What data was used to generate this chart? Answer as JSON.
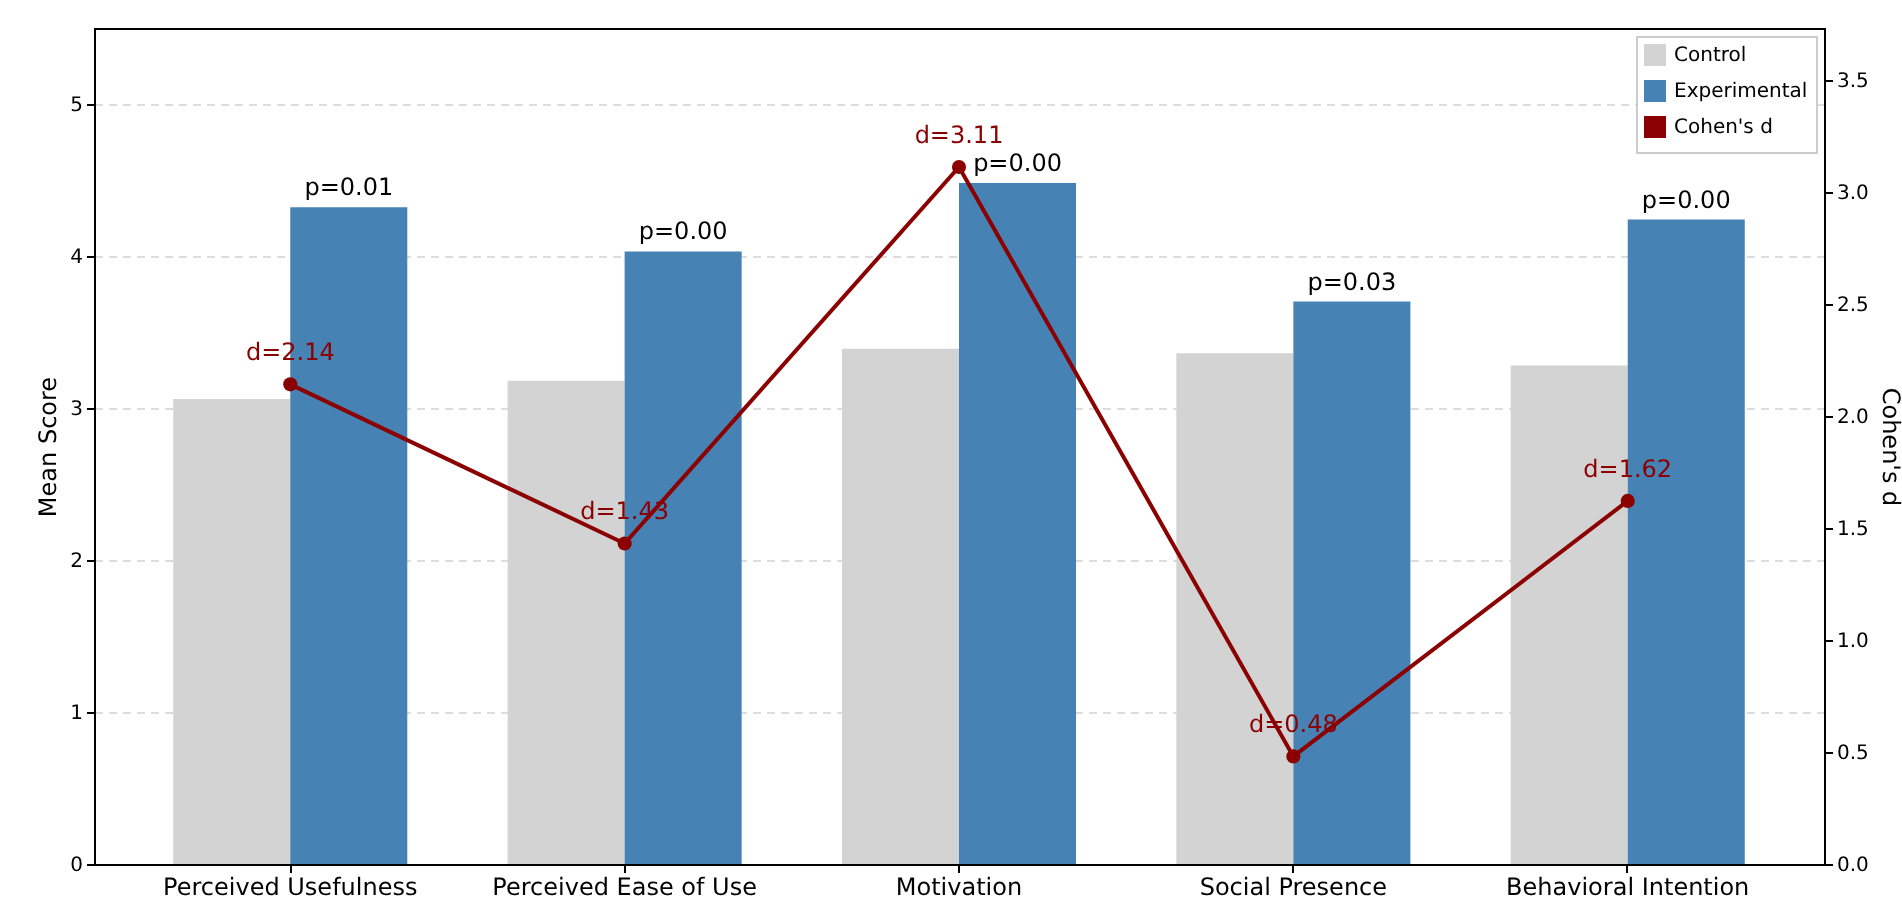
{
  "chart_data": {
    "type": "bar",
    "categories": [
      "Perceived Usefulness",
      "Perceived Ease of Use",
      "Motivation",
      "Social Presence",
      "Behavioral Intention"
    ],
    "ylabel": "Mean Score",
    "y2label": "Cohen's d",
    "ylim": [
      0,
      5.5
    ],
    "yticks": [
      0,
      1,
      2,
      3,
      4,
      5
    ],
    "y2lim": [
      0,
      3.73
    ],
    "y2ticks": [
      {
        "value": 0,
        "label": "0.0"
      },
      {
        "value": 0.5,
        "label": "0.5"
      },
      {
        "value": 1,
        "label": "1.0"
      },
      {
        "value": 1.5,
        "label": "1.5"
      },
      {
        "value": 2,
        "label": "2.0"
      },
      {
        "value": 2.5,
        "label": "2.5"
      },
      {
        "value": 3,
        "label": "3.0"
      },
      {
        "value": 3.5,
        "label": "3.5"
      }
    ],
    "grid": "y",
    "legend": "top right",
    "series": [
      {
        "name": "Control",
        "color": "#d3d3d3",
        "values": [
          3.06,
          3.18,
          3.39,
          3.36,
          3.28
        ]
      },
      {
        "name": "Experimental",
        "color": "#4682b4",
        "values": [
          4.32,
          4.03,
          4.48,
          3.7,
          4.24
        ]
      },
      {
        "name": "Cohen's d",
        "type": "line",
        "axis": "y2",
        "marker": "circle",
        "color": "#8b0000",
        "values": [
          2.14,
          1.43,
          3.11,
          0.48,
          1.62
        ],
        "value_labels": [
          "d=2.14",
          "d=1.43",
          "d=3.11",
          "d=0.48",
          "d=1.62"
        ]
      }
    ],
    "annotations": [
      {
        "text": "p=0.01",
        "x": "Perceived Usefulness",
        "y": 4.32
      },
      {
        "text": "p=0.00",
        "x": "Perceived Ease of Use",
        "y": 4.03
      },
      {
        "text": "p=0.00",
        "x": "Motivation",
        "y": 4.48
      },
      {
        "text": "p=0.03",
        "x": "Social Presence",
        "y": 3.7
      },
      {
        "text": "p=0.00",
        "x": "Behavioral Intention",
        "y": 4.24
      }
    ]
  }
}
